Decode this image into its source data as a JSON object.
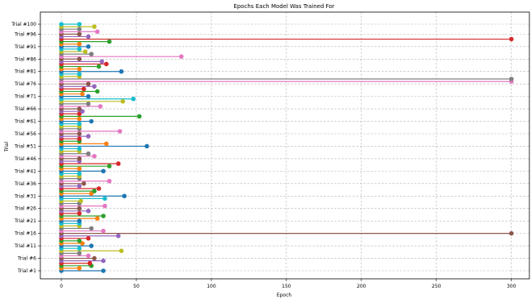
{
  "chart_data": {
    "type": "lollipop",
    "title": "Epochs Each Model Was Trained For",
    "xlabel": "Epoch",
    "ylabel": "Trial",
    "xlim": [
      -14,
      312
    ],
    "x_ticks": [
      0,
      50,
      100,
      150,
      200,
      250,
      300
    ],
    "grid": true,
    "grid_style": "dashed",
    "y_tick_labels": [
      "Trial #1",
      "Trial #6",
      "Trial #11",
      "Trial #16",
      "Trial #21",
      "Trial #26",
      "Trial #31",
      "Trial #36",
      "Trial #41",
      "Trial #46",
      "Trial #51",
      "Trial #56",
      "Trial #61",
      "Trial #66",
      "Trial #71",
      "Trial #76",
      "Trial #81",
      "Trial #86",
      "Trial #91",
      "Trial #96",
      "Trial #100"
    ],
    "y_tick_indices": [
      0,
      5,
      10,
      15,
      20,
      25,
      30,
      35,
      40,
      45,
      50,
      55,
      60,
      65,
      70,
      75,
      80,
      85,
      90,
      95,
      99
    ],
    "colors": [
      "#1f77b4",
      "#ff7f0e",
      "#2ca02c",
      "#d62728",
      "#9467bd",
      "#8c564b",
      "#e377c2",
      "#7f7f7f",
      "#bcbd22",
      "#17becf"
    ],
    "values": [
      28,
      12,
      20,
      19,
      28,
      22,
      18,
      12,
      40,
      12,
      20,
      14,
      12,
      18,
      38,
      300,
      28,
      20,
      12,
      12,
      12,
      24,
      28,
      12,
      18,
      12,
      29,
      12,
      13,
      29,
      42,
      20,
      22,
      25,
      12,
      15,
      32,
      12,
      12,
      12,
      28,
      12,
      32,
      38,
      12,
      12,
      22,
      18,
      12,
      12,
      57,
      30,
      12,
      12,
      18,
      12,
      39,
      12,
      12,
      12,
      20,
      12,
      52,
      12,
      14,
      12,
      26,
      18,
      41,
      48,
      18,
      14,
      24,
      15,
      22,
      18,
      300,
      300,
      12,
      12,
      40,
      12,
      25,
      30,
      27,
      12,
      80,
      20,
      16,
      12,
      18,
      12,
      32,
      300,
      18,
      12,
      24,
      12,
      22,
      12
    ]
  }
}
